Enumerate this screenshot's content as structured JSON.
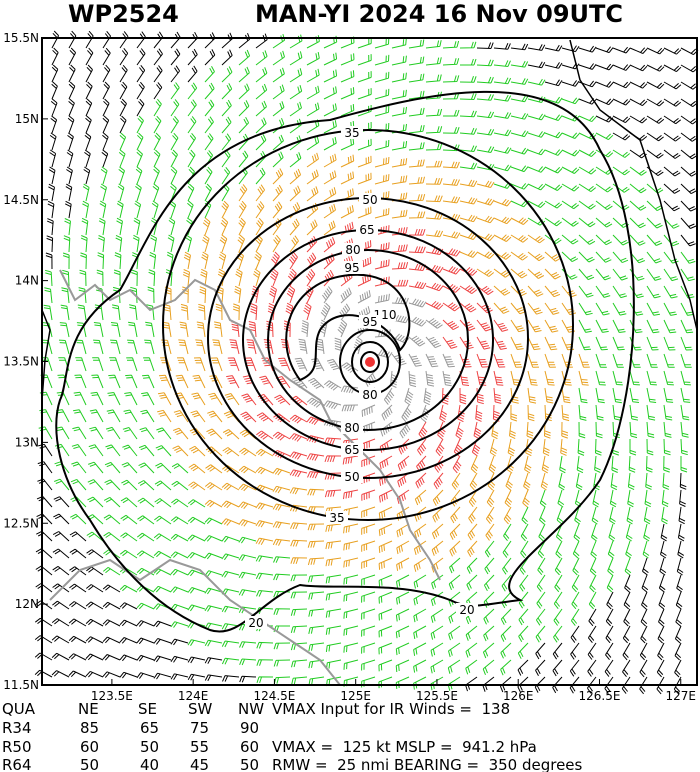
{
  "header": {
    "storm_id": "WP2524",
    "title": "MAN-YI 2024 16 Nov 09UTC"
  },
  "map": {
    "xlim": [
      123.07,
      127.1
    ],
    "ylim": [
      11.5,
      15.5
    ],
    "xticks": [
      {
        "value": 123.5,
        "label": "123.5E"
      },
      {
        "value": 124,
        "label": "124E"
      },
      {
        "value": 124.5,
        "label": "124.5E"
      },
      {
        "value": 125,
        "label": "125E"
      },
      {
        "value": 125.5,
        "label": "125.5E"
      },
      {
        "value": 126,
        "label": "126E"
      },
      {
        "value": 126.5,
        "label": "126.5E"
      },
      {
        "value": 127,
        "label": "127E"
      }
    ],
    "yticks": [
      {
        "value": 11.5,
        "label": "11.5N"
      },
      {
        "value": 12,
        "label": "12N"
      },
      {
        "value": 12.5,
        "label": "12.5N"
      },
      {
        "value": 13,
        "label": "13N"
      },
      {
        "value": 13.5,
        "label": "13.5N"
      },
      {
        "value": 14,
        "label": "14N"
      },
      {
        "value": 14.5,
        "label": "14.5N"
      },
      {
        "value": 15,
        "label": "15N"
      },
      {
        "value": 15.5,
        "label": "15.5N"
      }
    ],
    "contour_labels": [
      "35",
      "50",
      "65",
      "80",
      "95",
      "110",
      "95",
      "80",
      "80",
      "65",
      "50",
      "35",
      "20",
      "20"
    ]
  },
  "table": {
    "header": [
      "QUA",
      "NE",
      "SE",
      "SW",
      "NW"
    ],
    "rows": [
      [
        "R34",
        "85",
        "65",
        "75",
        "90"
      ],
      [
        "R50",
        "60",
        "50",
        "55",
        "60"
      ],
      [
        "R64",
        "50",
        "40",
        "45",
        "50"
      ]
    ],
    "notes": [
      "VMAX Input for IR Winds =  138",
      "VMAX =  125 kt MSLP =  941.2 hPa",
      "RMW =  25 nmi BEARING =  350 degrees"
    ]
  }
}
